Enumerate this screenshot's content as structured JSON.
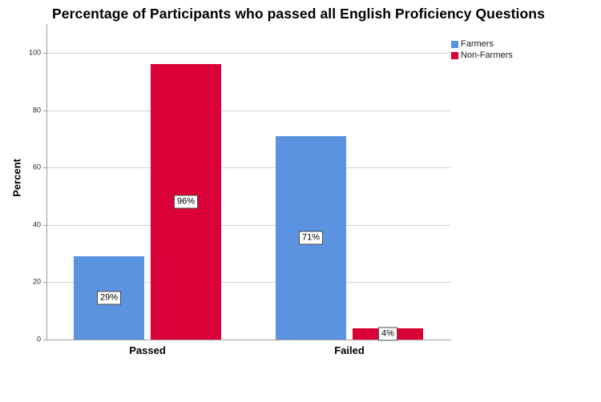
{
  "chart_data": {
    "type": "bar",
    "title": "Percentage of Participants who passed all English Proficiency Questions",
    "xlabel": "",
    "ylabel": "Percent",
    "categories": [
      "Passed",
      "Failed"
    ],
    "series": [
      {
        "name": "Farmers",
        "color": "#5b93e0",
        "values": [
          29,
          71
        ],
        "labels": [
          "29%",
          "71%"
        ]
      },
      {
        "name": "Non-Farmers",
        "color": "#da0038",
        "values": [
          96,
          4
        ],
        "labels": [
          "96%",
          "4%"
        ]
      }
    ],
    "ylim": [
      0,
      100
    ],
    "yticks": [
      0,
      20,
      40,
      60,
      80,
      100
    ],
    "grid": true,
    "legend_position": "top-right-outside",
    "bar_labels_shown": true
  },
  "colors": {
    "farmers": "#5b93e0",
    "non_farmers": "#da0038",
    "gridline": "#d4d4d4",
    "axis": "#9c9c9c",
    "label_box_border": "#4a4a4a",
    "background": "#ffffff"
  }
}
